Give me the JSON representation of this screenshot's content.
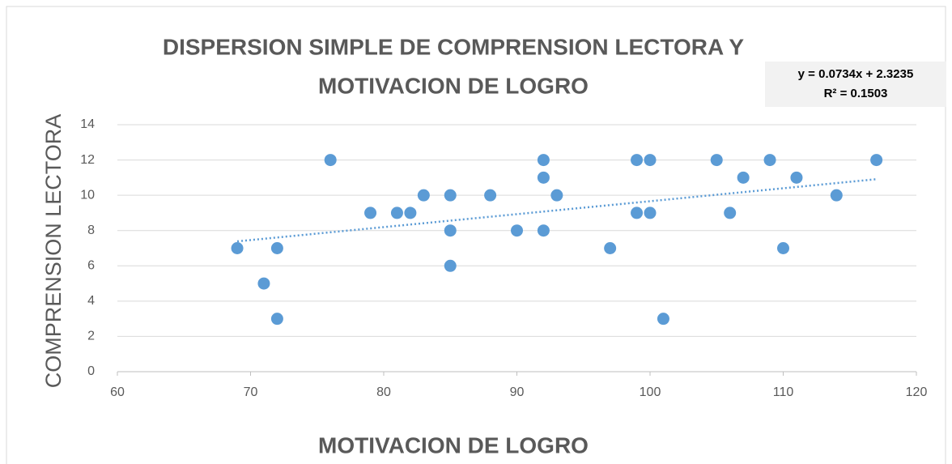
{
  "chart_data": {
    "type": "scatter",
    "title": [
      "DISPERSION SIMPLE DE COMPRENSION LECTORA Y",
      "MOTIVACION DE LOGRO"
    ],
    "x_label": "MOTIVACION DE LOGRO",
    "y_label": "COMPRENSION LECTORA",
    "x": [
      69,
      71,
      72,
      72,
      76,
      79,
      81,
      82,
      83,
      85,
      85,
      85,
      88,
      90,
      92,
      92,
      92,
      93,
      97,
      99,
      99,
      100,
      100,
      101,
      105,
      106,
      107,
      109,
      110,
      111,
      114,
      117
    ],
    "values": [
      7,
      5,
      7,
      3,
      12,
      9,
      9,
      9,
      10,
      10,
      8,
      6,
      10,
      8,
      12,
      11,
      8,
      10,
      7,
      12,
      9,
      12,
      9,
      3,
      12,
      9,
      11,
      12,
      7,
      11,
      10,
      12
    ],
    "color": "#5b9bd5",
    "xlim": [
      60,
      120
    ],
    "xticks": [
      60,
      70,
      80,
      90,
      100,
      110,
      120
    ],
    "ylim": [
      0,
      14
    ],
    "yticks": [
      0,
      2,
      4,
      6,
      8,
      10,
      12,
      14
    ],
    "grid": true,
    "trendline": {
      "slope": 0.0734,
      "intercept": 2.3235,
      "label": "y = 0.0734x + 2.3235",
      "r2_label": "R² = 0.1503",
      "color": "#5b9bd5"
    }
  }
}
